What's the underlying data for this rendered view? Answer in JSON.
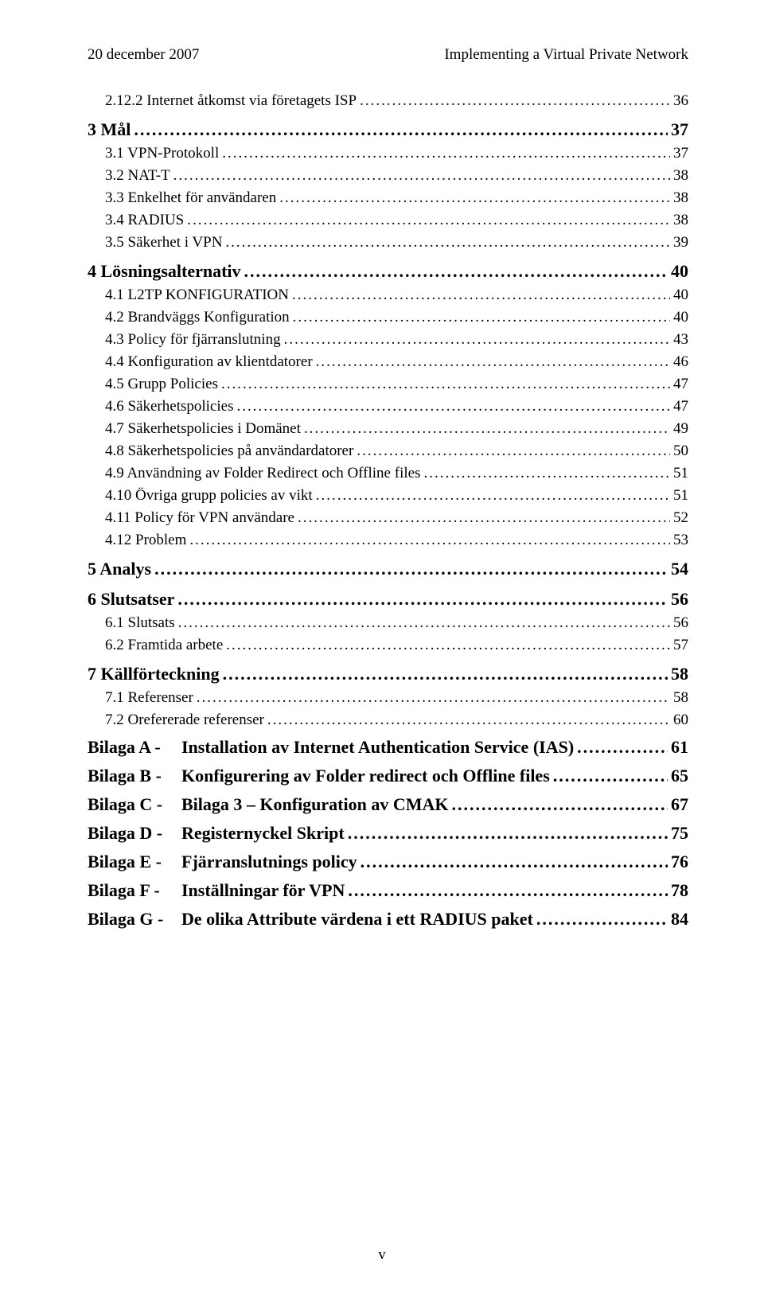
{
  "header": {
    "left": "20 december 2007",
    "right": "Implementing a Virtual Private Network"
  },
  "toc": [
    {
      "level": "l2",
      "label": "2.12.2 Internet åtkomst via företagets ISP",
      "page": "36"
    },
    {
      "level": "l1",
      "label": "3 Mål",
      "page": "37"
    },
    {
      "level": "l2",
      "label": "3.1 VPN-Protokoll",
      "page": "37"
    },
    {
      "level": "l2",
      "label": "3.2 NAT-T",
      "page": "38"
    },
    {
      "level": "l2",
      "label": "3.3 Enkelhet för användaren",
      "page": "38"
    },
    {
      "level": "l2",
      "label": "3.4 RADIUS",
      "page": "38"
    },
    {
      "level": "l2",
      "label": "3.5 Säkerhet i VPN",
      "page": "39"
    },
    {
      "level": "l1",
      "label": "4 Lösningsalternativ",
      "page": "40"
    },
    {
      "level": "l2",
      "label": "4.1 L2TP KONFIGURATION",
      "page": "40"
    },
    {
      "level": "l2",
      "label": "4.2 Brandväggs Konfiguration",
      "page": "40"
    },
    {
      "level": "l2",
      "label": "4.3 Policy för fjärranslutning",
      "page": "43"
    },
    {
      "level": "l2",
      "label": "4.4 Konfiguration av klientdatorer",
      "page": "46"
    },
    {
      "level": "l2",
      "label": "4.5 Grupp Policies",
      "page": "47"
    },
    {
      "level": "l2",
      "label": "4.6 Säkerhetspolicies",
      "page": "47"
    },
    {
      "level": "l2",
      "label": "4.7 Säkerhetspolicies i Domänet",
      "page": "49"
    },
    {
      "level": "l2",
      "label": "4.8 Säkerhetspolicies på användardatorer",
      "page": "50"
    },
    {
      "level": "l2",
      "label": "4.9 Användning av Folder Redirect och Offline files",
      "page": "51"
    },
    {
      "level": "l2",
      "label": "4.10 Övriga grupp policies av vikt",
      "page": "51"
    },
    {
      "level": "l2",
      "label": "4.11 Policy för VPN användare",
      "page": "52"
    },
    {
      "level": "l2",
      "label": "4.12 Problem",
      "page": "53"
    },
    {
      "level": "l1",
      "label": "5 Analys",
      "page": "54"
    },
    {
      "level": "l1",
      "label": "6 Slutsatser",
      "page": "56"
    },
    {
      "level": "l2",
      "label": "6.1 Slutsats",
      "page": "56"
    },
    {
      "level": "l2",
      "label": "6.2 Framtida arbete",
      "page": "57"
    },
    {
      "level": "l1",
      "label": "7 Källförteckning",
      "page": "58"
    },
    {
      "level": "l2",
      "label": "7.1 Referenser",
      "page": "58"
    },
    {
      "level": "l2",
      "label": "7.2 Orefererade referenser",
      "page": "60"
    }
  ],
  "bilagor": [
    {
      "prefix": "Bilaga A -",
      "title": "Installation av Internet Authentication Service (IAS)",
      "page": "61"
    },
    {
      "prefix": "Bilaga B -",
      "title": "Konfigurering av Folder redirect och Offline files",
      "page": "65"
    },
    {
      "prefix": "Bilaga C -",
      "title": "Bilaga 3 – Konfiguration av CMAK",
      "page": "67"
    },
    {
      "prefix": "Bilaga D -",
      "title": "Registernyckel Skript",
      "page": "75"
    },
    {
      "prefix": "Bilaga E -",
      "title": "Fjärranslutnings policy",
      "page": "76"
    },
    {
      "prefix": "Bilaga F -",
      "title": "Inställningar för VPN",
      "page": "78"
    },
    {
      "prefix": "Bilaga G -",
      "title": "De olika Attribute värdena i ett RADIUS paket",
      "page": "84"
    }
  ],
  "footer": {
    "page_numeral": "v"
  },
  "leader_char": "."
}
